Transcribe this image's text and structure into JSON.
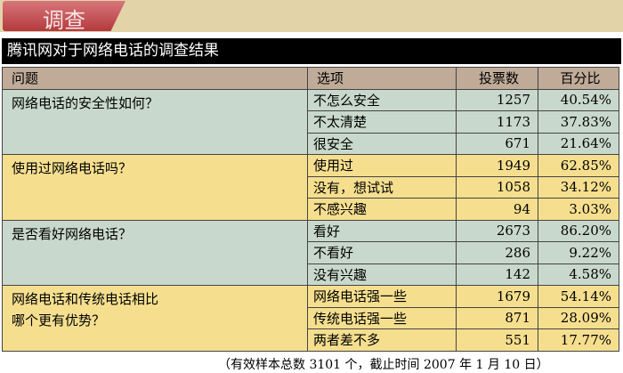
{
  "section_tab": "调查",
  "title": "腾讯网对于网络电话的调查结果",
  "columns": [
    "问题",
    "选项",
    "投票数",
    "百分比"
  ],
  "groups": [
    {
      "question": "网络电话的安全性如何？",
      "color": "green",
      "options": [
        [
          "不怎么安全",
          "1257",
          "40.54%"
        ],
        [
          "不太清楚",
          "1173",
          "37.83%"
        ],
        [
          "很安全",
          "671",
          "21.64%"
        ]
      ]
    },
    {
      "question": "使用过网络电话吗？",
      "color": "yellow",
      "options": [
        [
          "使用过",
          "1949",
          "62.85%"
        ],
        [
          "没有，想试试",
          "1058",
          "34.12%"
        ],
        [
          "不感兴趣",
          "94",
          "3.03%"
        ]
      ]
    },
    {
      "question": "是否看好网络电话？",
      "color": "green",
      "options": [
        [
          "看好",
          "2673",
          "86.20%"
        ],
        [
          "不看好",
          "286",
          "9.22%"
        ],
        [
          "没有兴趣",
          "142",
          "4.58%"
        ]
      ]
    },
    {
      "question": "网络电话和传统电话相比\n哪个更有优势？",
      "color": "yellow",
      "options": [
        [
          "网络电话强一些",
          "1679",
          "54.14%"
        ],
        [
          "传统电话强一些",
          "871",
          "28.09%"
        ],
        [
          "两者差不多",
          "551",
          "17.77%"
        ]
      ]
    }
  ],
  "footnote": "（有效样本总数 3101 个，截止时间 2007 年 1 月 10 日）"
}
